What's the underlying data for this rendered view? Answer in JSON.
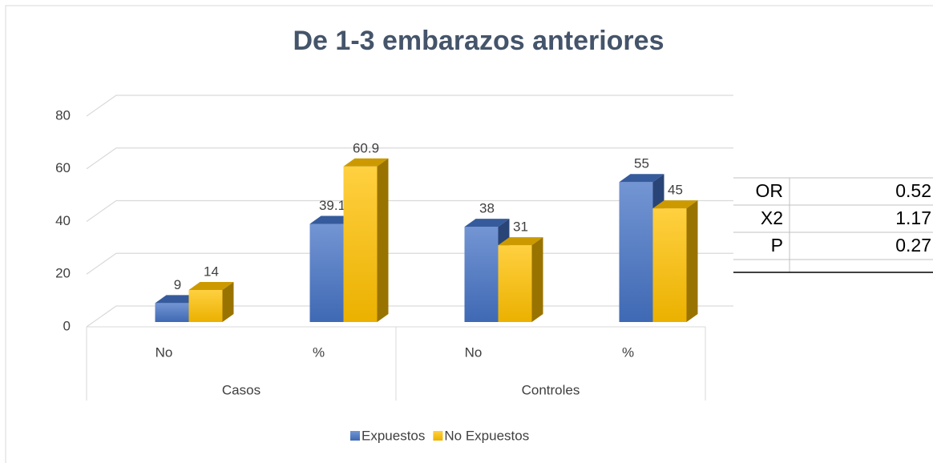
{
  "chart_data": {
    "type": "bar3d",
    "title": "De 1-3 embarazos anteriores",
    "categories": [
      "No",
      "%",
      "No",
      "%"
    ],
    "groups": [
      "Casos",
      "Controles"
    ],
    "series": [
      {
        "name": "Expuestos",
        "color": "#4472c4",
        "values": [
          9,
          39.1,
          38,
          55
        ]
      },
      {
        "name": "No Expuestos",
        "color": "#ffc000",
        "values": [
          14,
          60.9,
          31,
          45
        ]
      }
    ],
    "ylim": [
      0,
      80
    ],
    "yticks": [
      0,
      20,
      40,
      60,
      80
    ],
    "grid": true,
    "legend": "bottom"
  },
  "table": {
    "rows": [
      [
        "OR",
        "0.52"
      ],
      [
        "X2",
        "1.17"
      ],
      [
        "P",
        "0.27"
      ]
    ]
  }
}
